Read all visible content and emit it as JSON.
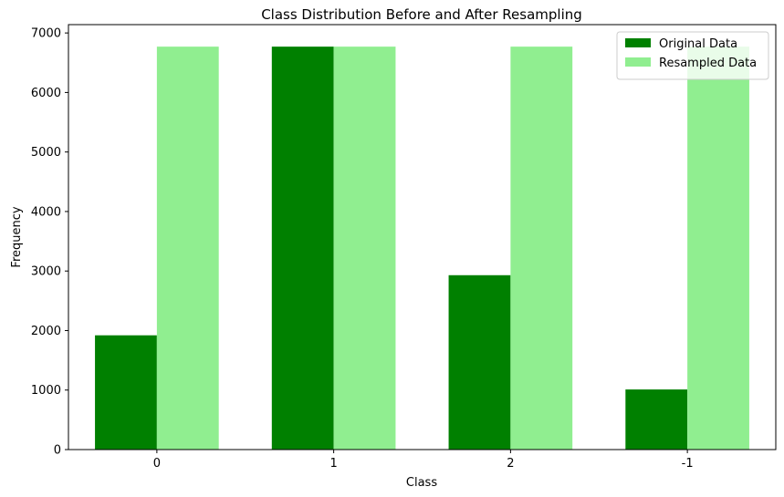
{
  "chart_data": {
    "type": "bar",
    "title": "Class Distribution Before and After Resampling",
    "xlabel": "Class",
    "ylabel": "Frequency",
    "categories": [
      "0",
      "1",
      "2",
      "-1"
    ],
    "ylim": [
      0,
      7000
    ],
    "yticks": [
      "0",
      "1000",
      "2000",
      "3000",
      "4000",
      "5000",
      "6000",
      "7000"
    ],
    "grid": false,
    "legend_position": "top-right",
    "series": [
      {
        "name": "Original Data",
        "color": "#008000",
        "values": [
          1920,
          6770,
          2930,
          1010
        ]
      },
      {
        "name": "Resampled Data",
        "color": "#90EE90",
        "values": [
          6770,
          6770,
          6770,
          6770
        ]
      }
    ]
  }
}
